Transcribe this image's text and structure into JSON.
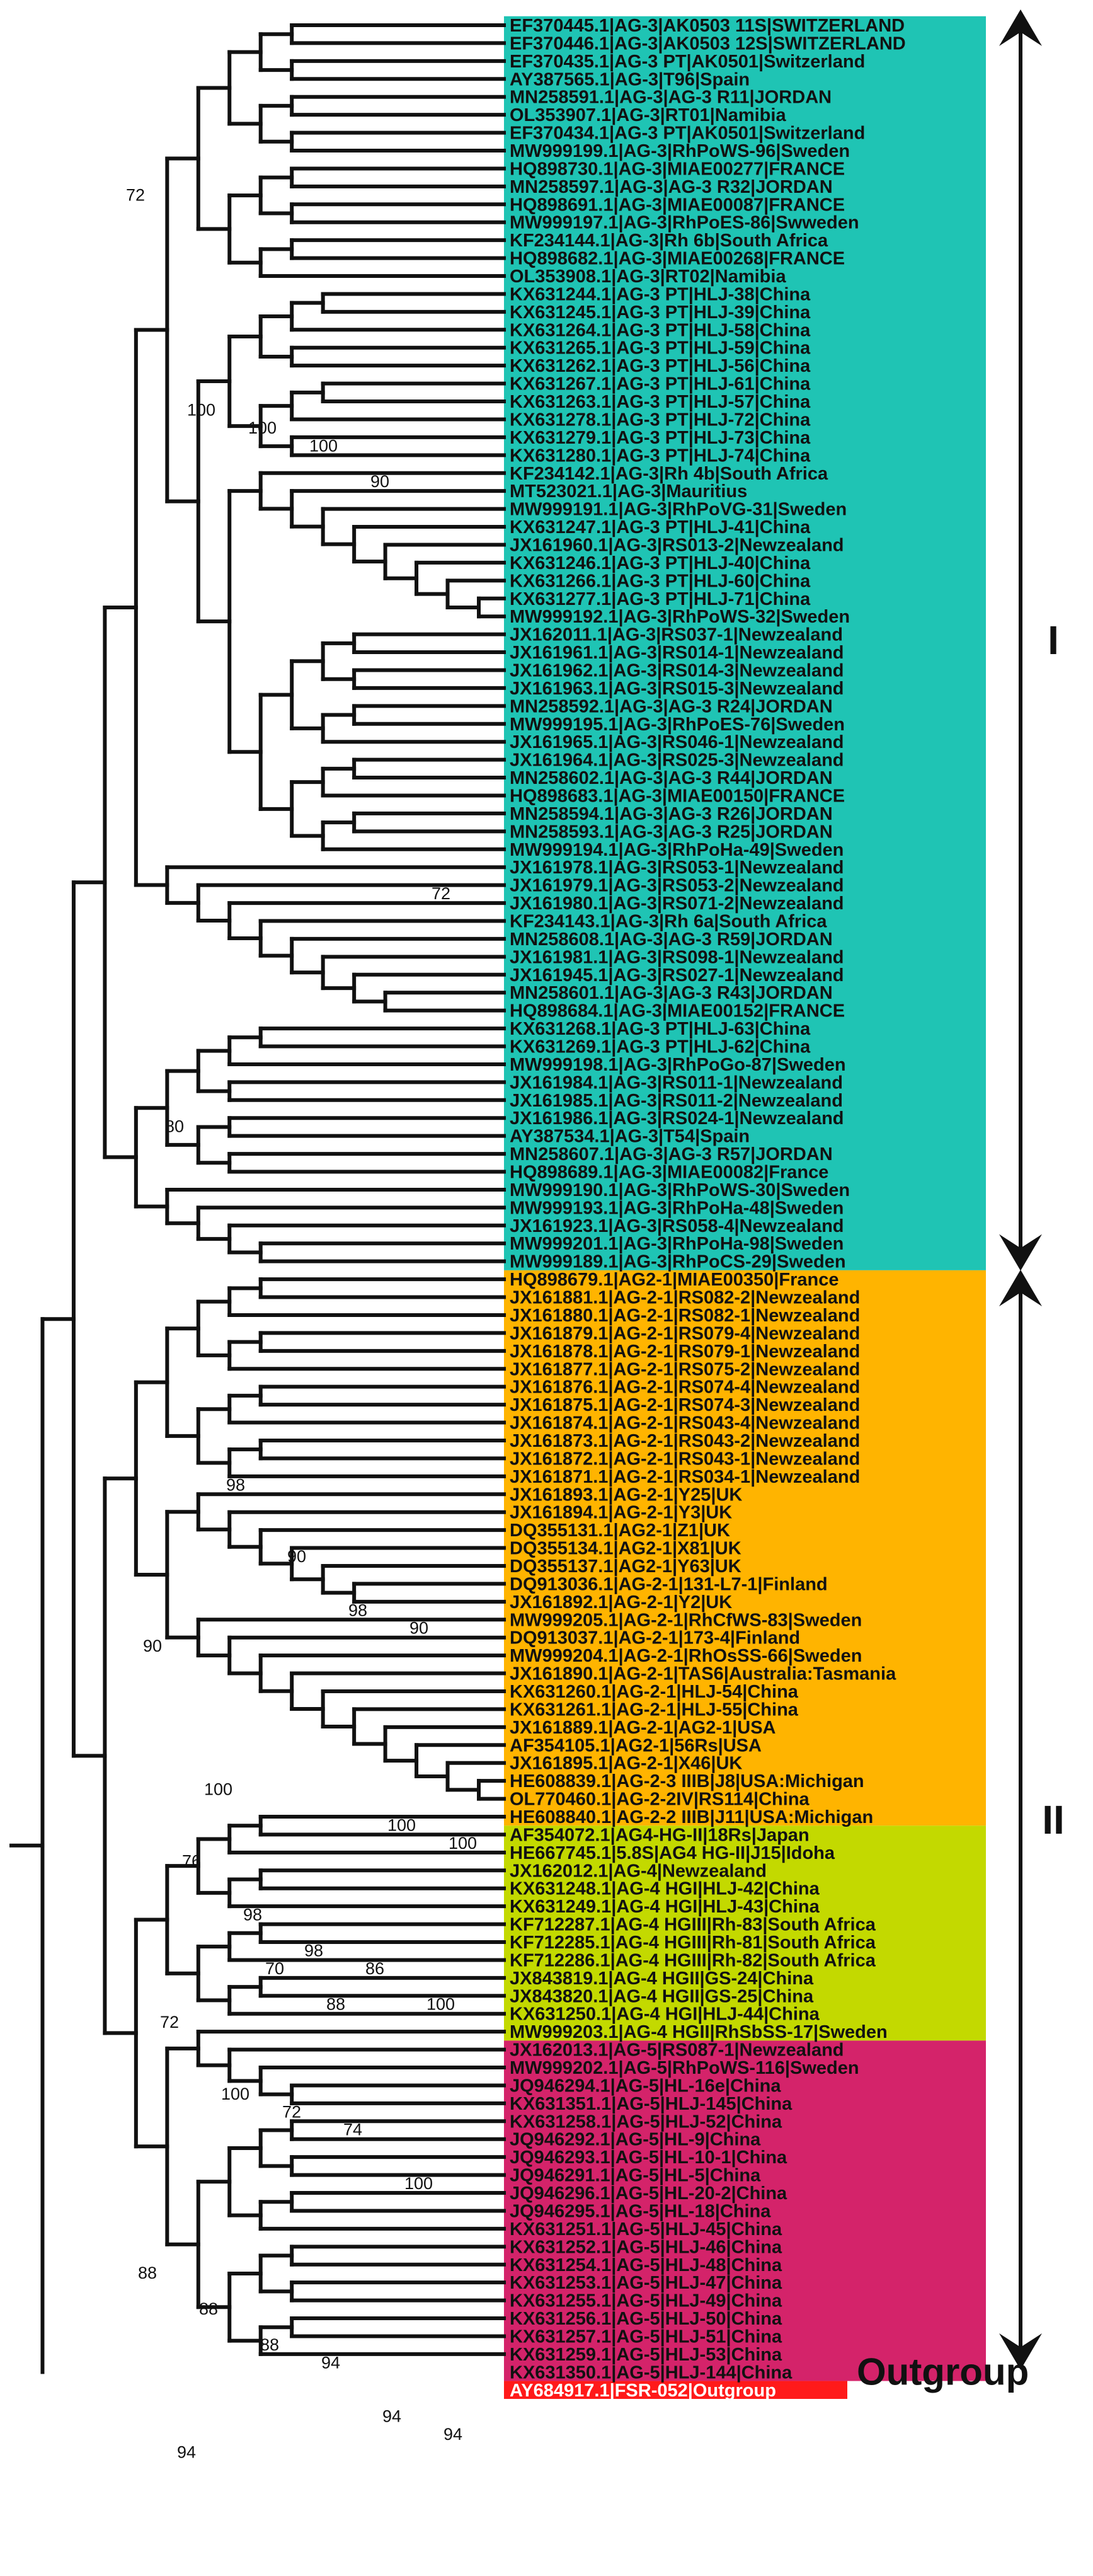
{
  "figure": {
    "type": "phylogenetic-tree"
  },
  "colors": {
    "I": "#1fc4b4",
    "AG2": "#ffb400",
    "AG4": "#c3d900",
    "AG5": "#d4236a",
    "outgroup": "#ff1a1a",
    "line": "#111111"
  },
  "leaves": [
    {
      "label": "EF370445.1|AG-3|AK0503 11S|SWITZERLAND",
      "group": "I"
    },
    {
      "label": "EF370446.1|AG-3|AK0503 12S|SWITZERLAND",
      "group": "I"
    },
    {
      "label": "EF370435.1|AG-3 PT|AK0501|Switzerland",
      "group": "I"
    },
    {
      "label": "AY387565.1|AG-3|T96|Spain",
      "group": "I"
    },
    {
      "label": "MN258591.1|AG-3|AG-3 R11|JORDAN",
      "group": "I"
    },
    {
      "label": "OL353907.1|AG-3|RT01|Namibia",
      "group": "I"
    },
    {
      "label": "EF370434.1|AG-3 PT|AK0501|Switzerland",
      "group": "I"
    },
    {
      "label": "MW999199.1|AG-3|RhPoWS-96|Sweden",
      "group": "I"
    },
    {
      "label": "HQ898730.1|AG-3|MIAE00277|FRANCE",
      "group": "I"
    },
    {
      "label": "MN258597.1|AG-3|AG-3 R32|JORDAN",
      "group": "I"
    },
    {
      "label": "HQ898691.1|AG-3|MIAE00087|FRANCE",
      "group": "I"
    },
    {
      "label": "MW999197.1|AG-3|RhPoES-86|Swweden",
      "group": "I"
    },
    {
      "label": "KF234144.1|AG-3|Rh 6b|South Africa",
      "group": "I"
    },
    {
      "label": "HQ898682.1|AG-3|MIAE00268|FRANCE",
      "group": "I"
    },
    {
      "label": "OL353908.1|AG-3|RT02|Namibia",
      "group": "I"
    },
    {
      "label": "KX631244.1|AG-3 PT|HLJ-38|China",
      "group": "I"
    },
    {
      "label": "KX631245.1|AG-3 PT|HLJ-39|China",
      "group": "I"
    },
    {
      "label": "KX631264.1|AG-3 PT|HLJ-58|China",
      "group": "I"
    },
    {
      "label": "KX631265.1|AG-3 PT|HLJ-59|China",
      "group": "I"
    },
    {
      "label": "KX631262.1|AG-3 PT|HLJ-56|China",
      "group": "I"
    },
    {
      "label": "KX631267.1|AG-3 PT|HLJ-61|China",
      "group": "I"
    },
    {
      "label": "KX631263.1|AG-3 PT|HLJ-57|China",
      "group": "I"
    },
    {
      "label": "KX631278.1|AG-3 PT|HLJ-72|China",
      "group": "I"
    },
    {
      "label": "KX631279.1|AG-3 PT|HLJ-73|China",
      "group": "I"
    },
    {
      "label": "KX631280.1|AG-3 PT|HLJ-74|China",
      "group": "I"
    },
    {
      "label": "KF234142.1|AG-3|Rh 4b|South Africa",
      "group": "I"
    },
    {
      "label": "MT523021.1|AG-3|Mauritius",
      "group": "I"
    },
    {
      "label": "MW999191.1|AG-3|RhPoVG-31|Sweden",
      "group": "I"
    },
    {
      "label": "KX631247.1|AG-3 PT|HLJ-41|China",
      "group": "I"
    },
    {
      "label": "JX161960.1|AG-3|RS013-2|Newzealand",
      "group": "I"
    },
    {
      "label": "KX631246.1|AG-3 PT|HLJ-40|China",
      "group": "I"
    },
    {
      "label": "KX631266.1|AG-3 PT|HLJ-60|China",
      "group": "I"
    },
    {
      "label": "KX631277.1|AG-3 PT|HLJ-71|China",
      "group": "I"
    },
    {
      "label": "MW999192.1|AG-3|RhPoWS-32|Sweden",
      "group": "I"
    },
    {
      "label": "JX162011.1|AG-3|RS037-1|Newzealand",
      "group": "I"
    },
    {
      "label": "JX161961.1|AG-3|RS014-1|Newzealand",
      "group": "I"
    },
    {
      "label": "JX161962.1|AG-3|RS014-3|Newzealand",
      "group": "I"
    },
    {
      "label": "JX161963.1|AG-3|RS015-3|Newzealand",
      "group": "I"
    },
    {
      "label": "MN258592.1|AG-3|AG-3 R24|JORDAN",
      "group": "I"
    },
    {
      "label": "MW999195.1|AG-3|RhPoES-76|Sweden",
      "group": "I"
    },
    {
      "label": "JX161965.1|AG-3|RS046-1|Newzealand",
      "group": "I"
    },
    {
      "label": "JX161964.1|AG-3|RS025-3|Newzealand",
      "group": "I"
    },
    {
      "label": "MN258602.1|AG-3|AG-3 R44|JORDAN",
      "group": "I"
    },
    {
      "label": "HQ898683.1|AG-3|MIAE00150|FRANCE",
      "group": "I"
    },
    {
      "label": "MN258594.1|AG-3|AG-3 R26|JORDAN",
      "group": "I"
    },
    {
      "label": "MN258593.1|AG-3|AG-3 R25|JORDAN",
      "group": "I"
    },
    {
      "label": "MW999194.1|AG-3|RhPoHa-49|Sweden",
      "group": "I"
    },
    {
      "label": "JX161978.1|AG-3|RS053-1|Newzealand",
      "group": "I"
    },
    {
      "label": "JX161979.1|AG-3|RS053-2|Newzealand",
      "group": "I"
    },
    {
      "label": "JX161980.1|AG-3|RS071-2|Newzealand",
      "group": "I"
    },
    {
      "label": "KF234143.1|AG-3|Rh 6a|South Africa",
      "group": "I"
    },
    {
      "label": "MN258608.1|AG-3|AG-3 R59|JORDAN",
      "group": "I"
    },
    {
      "label": "JX161981.1|AG-3|RS098-1|Newzealand",
      "group": "I"
    },
    {
      "label": "JX161945.1|AG-3|RS027-1|Newzealand",
      "group": "I"
    },
    {
      "label": "MN258601.1|AG-3|AG-3 R43|JORDAN",
      "group": "I"
    },
    {
      "label": "HQ898684.1|AG-3|MIAE00152|FRANCE",
      "group": "I"
    },
    {
      "label": "KX631268.1|AG-3 PT|HLJ-63|China",
      "group": "I"
    },
    {
      "label": "KX631269.1|AG-3 PT|HLJ-62|China",
      "group": "I"
    },
    {
      "label": "MW999198.1|AG-3|RhPoGo-87|Sweden",
      "group": "I"
    },
    {
      "label": "JX161984.1|AG-3|RS011-1|Newzealand",
      "group": "I"
    },
    {
      "label": "JX161985.1|AG-3|RS011-2|Newzealand",
      "group": "I"
    },
    {
      "label": "JX161986.1|AG-3|RS024-1|Newzealand",
      "group": "I"
    },
    {
      "label": "AY387534.1|AG-3|T54|Spain",
      "group": "I"
    },
    {
      "label": "MN258607.1|AG-3|AG-3 R57|JORDAN",
      "group": "I"
    },
    {
      "label": "HQ898689.1|AG-3|MIAE00082|France",
      "group": "I"
    },
    {
      "label": "MW999190.1|AG-3|RhPoWS-30|Sweden",
      "group": "I"
    },
    {
      "label": "MW999193.1|AG-3|RhPoHa-48|Sweden",
      "group": "I"
    },
    {
      "label": "JX161923.1|AG-3|RS058-4|Newzealand",
      "group": "I"
    },
    {
      "label": "MW999201.1|AG-3|RhPoHa-98|Sweden",
      "group": "I"
    },
    {
      "label": "MW999189.1|AG-3|RhPoCS-29|Sweden",
      "group": "I"
    },
    {
      "label": "HQ898679.1|AG2-1|MIAE00350|France",
      "group": "AG2"
    },
    {
      "label": "JX161881.1|AG-2-1|RS082-2|Newzealand",
      "group": "AG2"
    },
    {
      "label": "JX161880.1|AG-2-1|RS082-1|Newzealand",
      "group": "AG2"
    },
    {
      "label": "JX161879.1|AG-2-1|RS079-4|Newzealand",
      "group": "AG2"
    },
    {
      "label": "JX161878.1|AG-2-1|RS079-1|Newzealand",
      "group": "AG2"
    },
    {
      "label": "JX161877.1|AG-2-1|RS075-2|Newzealand",
      "group": "AG2"
    },
    {
      "label": "JX161876.1|AG-2-1|RS074-4|Newzealand",
      "group": "AG2"
    },
    {
      "label": "JX161875.1|AG-2-1|RS074-3|Newzealand",
      "group": "AG2"
    },
    {
      "label": "JX161874.1|AG-2-1|RS043-4|Newzealand",
      "group": "AG2"
    },
    {
      "label": "JX161873.1|AG-2-1|RS043-2|Newzealand",
      "group": "AG2"
    },
    {
      "label": "JX161872.1|AG-2-1|RS043-1|Newzealand",
      "group": "AG2"
    },
    {
      "label": "JX161871.1|AG-2-1|RS034-1|Newzealand",
      "group": "AG2"
    },
    {
      "label": "JX161893.1|AG-2-1|Y25|UK",
      "group": "AG2"
    },
    {
      "label": "JX161894.1|AG-2-1|Y3|UK",
      "group": "AG2"
    },
    {
      "label": "DQ355131.1|AG2-1|Z1|UK",
      "group": "AG2"
    },
    {
      "label": "DQ355134.1|AG2-1|X81|UK",
      "group": "AG2"
    },
    {
      "label": "DQ355137.1|AG2-1|Y63|UK",
      "group": "AG2"
    },
    {
      "label": "DQ913036.1|AG-2-1|131-L7-1|Finland",
      "group": "AG2"
    },
    {
      "label": "JX161892.1|AG-2-1|Y2|UK",
      "group": "AG2"
    },
    {
      "label": "MW999205.1|AG-2-1|RhCfWS-83|Sweden",
      "group": "AG2"
    },
    {
      "label": "DQ913037.1|AG-2-1|173-4|Finland",
      "group": "AG2"
    },
    {
      "label": "MW999204.1|AG-2-1|RhOsSS-66|Sweden",
      "group": "AG2"
    },
    {
      "label": "JX161890.1|AG-2-1|TAS6|Australia:Tasmania",
      "group": "AG2"
    },
    {
      "label": "KX631260.1|AG-2-1|HLJ-54|China",
      "group": "AG2"
    },
    {
      "label": "KX631261.1|AG-2-1|HLJ-55|China",
      "group": "AG2"
    },
    {
      "label": "JX161889.1|AG-2-1|AG2-1|USA",
      "group": "AG2"
    },
    {
      "label": "AF354105.1|AG2-1|56Rs|USA",
      "group": "AG2"
    },
    {
      "label": "JX161895.1|AG-2-1|X46|UK",
      "group": "AG2"
    },
    {
      "label": "HE608839.1|AG-2-3 IIIB|J8|USA:Michigan",
      "group": "AG2"
    },
    {
      "label": "OL770460.1|AG-2-2IV|RS114|China",
      "group": "AG2"
    },
    {
      "label": "HE608840.1|AG-2-2 IIIB|J11|USA:Michigan",
      "group": "AG2"
    },
    {
      "label": "AF354072.1|AG4-HG-II|18Rs|Japan",
      "group": "AG4"
    },
    {
      "label": "HE667745.1|5.8S|AG4 HG-II|J15|Idoha",
      "group": "AG4"
    },
    {
      "label": "JX162012.1|AG-4|Newzealand",
      "group": "AG4"
    },
    {
      "label": "KX631248.1|AG-4 HGI|HLJ-42|China",
      "group": "AG4"
    },
    {
      "label": "KX631249.1|AG-4 HGI|HLJ-43|China",
      "group": "AG4"
    },
    {
      "label": "KF712287.1|AG-4 HGIII|Rh-83|South Africa",
      "group": "AG4"
    },
    {
      "label": "KF712285.1|AG-4 HGIII|Rh-81|South Africa",
      "group": "AG4"
    },
    {
      "label": "KF712286.1|AG-4 HGIII|Rh-82|South Africa",
      "group": "AG4"
    },
    {
      "label": "JX843819.1|AG-4 HGII|GS-24|China",
      "group": "AG4"
    },
    {
      "label": "JX843820.1|AG-4 HGII|GS-25|China",
      "group": "AG4"
    },
    {
      "label": "KX631250.1|AG-4 HGI|HLJ-44|China",
      "group": "AG4"
    },
    {
      "label": "MW999203.1|AG-4 HGII|RhSbSS-17|Sweden",
      "group": "AG4"
    },
    {
      "label": "JX162013.1|AG-5|RS087-1|Newzealand",
      "group": "AG5"
    },
    {
      "label": "MW999202.1|AG-5|RhPoWS-116|Sweden",
      "group": "AG5"
    },
    {
      "label": "JQ946294.1|AG-5|HL-16e|China",
      "group": "AG5"
    },
    {
      "label": "KX631351.1|AG-5|HLJ-145|China",
      "group": "AG5"
    },
    {
      "label": "KX631258.1|AG-5|HLJ-52|China",
      "group": "AG5"
    },
    {
      "label": "JQ946292.1|AG-5|HL-9|China",
      "group": "AG5"
    },
    {
      "label": "JQ946293.1|AG-5|HL-10-1|China",
      "group": "AG5"
    },
    {
      "label": "JQ946291.1|AG-5|HL-5|China",
      "group": "AG5"
    },
    {
      "label": "JQ946296.1|AG-5|HL-20-2|China",
      "group": "AG5"
    },
    {
      "label": "JQ946295.1|AG-5|HL-18|China",
      "group": "AG5"
    },
    {
      "label": "KX631251.1|AG-5|HLJ-45|China",
      "group": "AG5"
    },
    {
      "label": "KX631252.1|AG-5|HLJ-46|China",
      "group": "AG5"
    },
    {
      "label": "KX631254.1|AG-5|HLJ-48|China",
      "group": "AG5"
    },
    {
      "label": "KX631253.1|AG-5|HLJ-47|China",
      "group": "AG5"
    },
    {
      "label": "KX631255.1|AG-5|HLJ-49|China",
      "group": "AG5"
    },
    {
      "label": "KX631256.1|AG-5|HLJ-50|China",
      "group": "AG5"
    },
    {
      "label": "KX631257.1|AG-5|HLJ-51|China",
      "group": "AG5"
    },
    {
      "label": "KX631259.1|AG-5|HLJ-53|China",
      "group": "AG5"
    },
    {
      "label": "KX631350.1|AG-5|HLJ-144|China",
      "group": "AG5"
    },
    {
      "label": "AY684917.1|FSR-052|Outgroup",
      "group": "outgroup"
    }
  ],
  "support_values": [
    {
      "value": "72",
      "leaf": 10
    },
    {
      "value": "100",
      "leaf": 22
    },
    {
      "value": "100",
      "leaf": 23
    },
    {
      "value": "100",
      "leaf": 24
    },
    {
      "value": "90",
      "leaf": 26
    },
    {
      "value": "72",
      "leaf": 49
    },
    {
      "value": "80",
      "leaf": 62
    },
    {
      "value": "98",
      "leaf": 82
    },
    {
      "value": "90",
      "leaf": 86
    },
    {
      "value": "98",
      "leaf": 89
    },
    {
      "value": "90",
      "leaf": 90
    },
    {
      "value": "90",
      "leaf": 91
    },
    {
      "value": "100",
      "leaf": 99
    },
    {
      "value": "70",
      "leaf": 109
    },
    {
      "value": "88",
      "leaf": 111
    },
    {
      "value": "100",
      "leaf": 101
    },
    {
      "value": "100",
      "leaf": 102
    },
    {
      "value": "76",
      "leaf": 103
    },
    {
      "value": "98",
      "leaf": 106
    },
    {
      "value": "98",
      "leaf": 108
    },
    {
      "value": "86",
      "leaf": 109
    },
    {
      "value": "100",
      "leaf": 111
    },
    {
      "value": "72",
      "leaf": 112
    },
    {
      "value": "100",
      "leaf": 116
    },
    {
      "value": "72",
      "leaf": 117
    },
    {
      "value": "74",
      "leaf": 118
    },
    {
      "value": "100",
      "leaf": 121
    },
    {
      "value": "88",
      "leaf": 126
    },
    {
      "value": "88",
      "leaf": 128
    },
    {
      "value": "88",
      "leaf": 130
    },
    {
      "value": "94",
      "leaf": 131
    },
    {
      "value": "94",
      "leaf": 134
    },
    {
      "value": "94",
      "leaf": 135
    },
    {
      "value": "94",
      "leaf": 136
    }
  ],
  "clades": [
    {
      "label": "I"
    },
    {
      "label": "II"
    }
  ],
  "outgroup_label": "Outgroup"
}
